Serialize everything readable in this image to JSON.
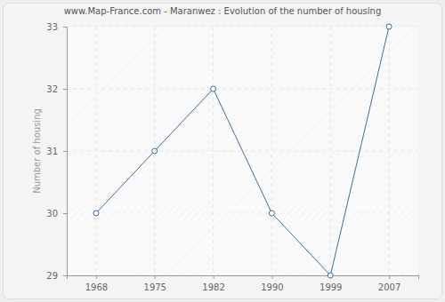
{
  "chart_data": {
    "type": "line",
    "title": "www.Map-France.com - Maranwez : Evolution of the number of housing",
    "y_label": "Number of housing",
    "categories": [
      "1968",
      "1975",
      "1982",
      "1990",
      "1999",
      "2007"
    ],
    "values": [
      30,
      31,
      32,
      30,
      29,
      33
    ],
    "color": "#3e6e9e",
    "marker": "circle",
    "ylim": [
      29,
      33
    ],
    "yticks": [
      29,
      30,
      31,
      32,
      33
    ],
    "grid": true
  }
}
